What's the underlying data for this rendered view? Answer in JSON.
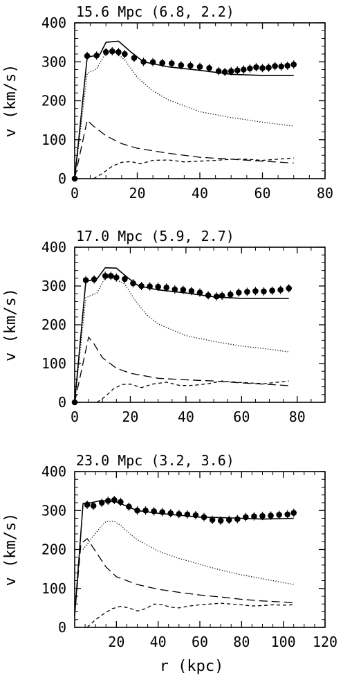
{
  "chart_data": [
    {
      "type": "line",
      "title": "15.6 Mpc   (6.8, 2.2)",
      "ylabel": "v (km/s)",
      "xlabel": "",
      "xlim": [
        0,
        80
      ],
      "ylim": [
        0,
        400
      ],
      "xticks": [
        "0",
        "20",
        "40",
        "60",
        "80"
      ],
      "yticks": [
        "0",
        "100",
        "200",
        "300",
        "400"
      ],
      "grid": false,
      "series": [
        {
          "style": "points",
          "x": [
            0,
            4,
            7,
            10,
            12,
            14,
            16,
            19,
            22,
            25,
            28,
            31,
            34,
            37,
            40,
            43,
            46,
            48,
            50,
            52,
            54,
            56,
            58,
            60,
            62,
            64,
            66,
            68,
            70
          ],
          "values": [
            0,
            315,
            316,
            325,
            327,
            325,
            320,
            310,
            300,
            299,
            297,
            296,
            291,
            290,
            287,
            284,
            276,
            274,
            276,
            278,
            280,
            283,
            286,
            284,
            285,
            289,
            288,
            290,
            293
          ]
        },
        {
          "style": "solid",
          "x": [
            0,
            4,
            8,
            10,
            14,
            18,
            22,
            30,
            40,
            50,
            60,
            70
          ],
          "values": [
            0,
            312,
            318,
            350,
            353,
            325,
            300,
            287,
            278,
            268,
            265,
            265
          ]
        },
        {
          "style": "dotted",
          "x": [
            0,
            4,
            7,
            10,
            13,
            16,
            20,
            25,
            30,
            40,
            50,
            60,
            70
          ],
          "values": [
            0,
            270,
            282,
            325,
            325,
            305,
            260,
            225,
            202,
            172,
            157,
            145,
            135
          ]
        },
        {
          "style": "dashed",
          "x": [
            0,
            4,
            6,
            10,
            15,
            20,
            30,
            40,
            50,
            60,
            70
          ],
          "values": [
            0,
            150,
            135,
            110,
            90,
            78,
            65,
            55,
            50,
            45,
            40
          ]
        },
        {
          "style": "short-dashed",
          "x": [
            6,
            9,
            12,
            15,
            18,
            21,
            25,
            30,
            35,
            40,
            45,
            50,
            55,
            60,
            65,
            70
          ],
          "values": [
            0,
            14,
            32,
            42,
            44,
            38,
            47,
            48,
            43,
            45,
            47,
            50,
            50,
            47,
            50,
            53
          ]
        }
      ]
    },
    {
      "type": "line",
      "title": "17.0 Mpc   (5.9, 2.7)",
      "ylabel": "v (km/s)",
      "xlabel": "",
      "xlim": [
        0,
        90
      ],
      "ylim": [
        0,
        400
      ],
      "xticks": [
        "0",
        "20",
        "40",
        "60",
        "80"
      ],
      "yticks": [
        "0",
        "100",
        "200",
        "300",
        "400"
      ],
      "grid": false,
      "series": [
        {
          "style": "points",
          "x": [
            0,
            4,
            7,
            11,
            13,
            15,
            18,
            21,
            24,
            27,
            30,
            33,
            36,
            39,
            42,
            45,
            48,
            51,
            53,
            56,
            59,
            62,
            65,
            68,
            71,
            74,
            77
          ],
          "values": [
            0,
            315,
            317,
            326,
            326,
            322,
            318,
            307,
            300,
            299,
            298,
            296,
            291,
            290,
            287,
            283,
            276,
            273,
            275,
            278,
            283,
            285,
            287,
            286,
            288,
            290,
            294
          ]
        },
        {
          "style": "solid",
          "x": [
            0,
            4,
            8,
            11,
            15,
            19,
            23,
            30,
            40,
            50,
            60,
            70,
            77
          ],
          "values": [
            0,
            312,
            318,
            347,
            346,
            322,
            300,
            290,
            282,
            272,
            268,
            268,
            268
          ]
        },
        {
          "style": "dotted",
          "x": [
            0,
            4,
            8,
            11,
            14,
            18,
            22,
            26,
            30,
            40,
            50,
            60,
            70,
            77
          ],
          "values": [
            0,
            270,
            282,
            322,
            320,
            305,
            260,
            225,
            202,
            172,
            157,
            145,
            137,
            130
          ]
        },
        {
          "style": "dashed",
          "x": [
            0,
            5,
            7,
            10,
            15,
            20,
            30,
            40,
            50,
            60,
            70,
            77
          ],
          "values": [
            0,
            168,
            150,
            115,
            88,
            75,
            62,
            58,
            55,
            50,
            46,
            43
          ]
        },
        {
          "style": "short-dashed",
          "x": [
            8,
            11,
            14,
            17,
            20,
            24,
            28,
            33,
            38,
            43,
            48,
            53,
            58,
            63,
            68,
            73,
            77
          ],
          "values": [
            0,
            15,
            35,
            46,
            47,
            38,
            47,
            52,
            43,
            44,
            48,
            55,
            52,
            50,
            48,
            52,
            55
          ]
        }
      ]
    },
    {
      "type": "line",
      "title": "23.0 Mpc   (3.2, 3.6)",
      "ylabel": "v (km/s)",
      "xlabel": "r (kpc)",
      "xlim": [
        0,
        120
      ],
      "ylim": [
        0,
        400
      ],
      "xticks": [
        "20",
        "40",
        "60",
        "80",
        "100",
        "120"
      ],
      "yticks": [
        "0",
        "100",
        "200",
        "300",
        "400"
      ],
      "grid": false,
      "series": [
        {
          "style": "points",
          "x": [
            6,
            9,
            13,
            16,
            19,
            22,
            26,
            30,
            34,
            38,
            42,
            46,
            50,
            54,
            58,
            62,
            66,
            70,
            74,
            78,
            82,
            86,
            90,
            94,
            98,
            102,
            105
          ],
          "values": [
            315,
            312,
            320,
            325,
            327,
            322,
            310,
            300,
            300,
            298,
            296,
            293,
            291,
            290,
            288,
            283,
            276,
            274,
            276,
            278,
            283,
            285,
            286,
            287,
            289,
            290,
            294
          ]
        },
        {
          "style": "solid",
          "x": [
            0,
            4,
            8,
            12,
            16,
            20,
            30,
            40,
            50,
            60,
            70,
            80,
            90,
            105
          ],
          "values": [
            30,
            318,
            320,
            325,
            325,
            322,
            300,
            293,
            288,
            283,
            282,
            280,
            278,
            280
          ]
        },
        {
          "style": "dotted",
          "x": [
            4,
            8,
            12,
            15,
            19,
            22,
            26,
            30,
            40,
            50,
            60,
            70,
            80,
            90,
            100,
            105
          ],
          "values": [
            200,
            228,
            255,
            272,
            272,
            262,
            242,
            225,
            196,
            177,
            162,
            147,
            135,
            125,
            115,
            110
          ]
        },
        {
          "style": "dashed",
          "x": [
            0,
            3,
            6,
            10,
            15,
            20,
            30,
            40,
            50,
            60,
            70,
            80,
            90,
            100,
            105
          ],
          "values": [
            30,
            215,
            228,
            195,
            155,
            130,
            110,
            98,
            90,
            83,
            78,
            72,
            68,
            65,
            63
          ]
        },
        {
          "style": "short-dashed",
          "x": [
            6,
            10,
            14,
            18,
            22,
            26,
            30,
            34,
            38,
            42,
            46,
            50,
            55,
            60,
            65,
            70,
            75,
            80,
            85,
            90,
            95,
            100,
            105
          ],
          "values": [
            0,
            20,
            35,
            48,
            54,
            50,
            42,
            48,
            60,
            58,
            52,
            50,
            55,
            58,
            60,
            62,
            60,
            58,
            55,
            56,
            58,
            57,
            58
          ]
        }
      ]
    }
  ]
}
